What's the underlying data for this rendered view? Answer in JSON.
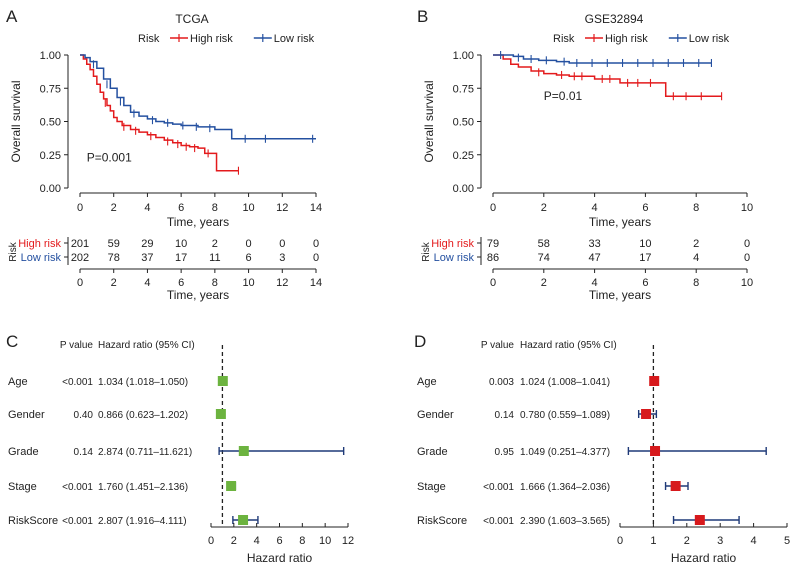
{
  "colors": {
    "high": "#e31a1c",
    "low": "#2450a0",
    "green": "#6cb33f",
    "red": "#d7191c",
    "navy": "#1f3a78",
    "axis": "#222222"
  },
  "chart_data": [
    {
      "panel": "A",
      "type": "line",
      "title": "TCGA",
      "legend_title": "Risk",
      "legend_position": "top-center",
      "xlabel": "Time, years",
      "ylabel": "Overall survival",
      "xlim": [
        0,
        14
      ],
      "ylim": [
        0,
        1
      ],
      "xticks": [
        "0",
        "2",
        "4",
        "6",
        "8",
        "10",
        "12",
        "14"
      ],
      "yticks": [
        "0.00",
        "0.25",
        "0.50",
        "0.75",
        "1.00"
      ],
      "annotation": "P=0.001",
      "series": [
        {
          "name": "High risk",
          "color": "#e31a1c",
          "points": [
            [
              0,
              1.0
            ],
            [
              0.2,
              0.97
            ],
            [
              0.4,
              0.93
            ],
            [
              0.6,
              0.89
            ],
            [
              0.8,
              0.84
            ],
            [
              1.0,
              0.78
            ],
            [
              1.2,
              0.72
            ],
            [
              1.4,
              0.67
            ],
            [
              1.6,
              0.62
            ],
            [
              1.8,
              0.58
            ],
            [
              2.0,
              0.53
            ],
            [
              2.2,
              0.5
            ],
            [
              2.5,
              0.47
            ],
            [
              3.0,
              0.44
            ],
            [
              3.5,
              0.42
            ],
            [
              4.0,
              0.4
            ],
            [
              4.5,
              0.38
            ],
            [
              5.0,
              0.36
            ],
            [
              5.5,
              0.34
            ],
            [
              6.0,
              0.32
            ],
            [
              6.5,
              0.31
            ],
            [
              7.0,
              0.3
            ],
            [
              7.4,
              0.26
            ],
            [
              8.0,
              0.26
            ],
            [
              8.1,
              0.13
            ],
            [
              9.4,
              0.13
            ]
          ],
          "censors": [
            [
              1.5,
              0.64
            ],
            [
              2.6,
              0.46
            ],
            [
              3.3,
              0.43
            ],
            [
              4.2,
              0.39
            ],
            [
              5.2,
              0.35
            ],
            [
              5.8,
              0.33
            ],
            [
              6.3,
              0.31
            ],
            [
              6.8,
              0.3
            ],
            [
              7.6,
              0.26
            ],
            [
              9.4,
              0.13
            ]
          ]
        },
        {
          "name": "Low risk",
          "color": "#2450a0",
          "points": [
            [
              0,
              1.0
            ],
            [
              0.3,
              0.98
            ],
            [
              0.6,
              0.95
            ],
            [
              1.0,
              0.9
            ],
            [
              1.4,
              0.82
            ],
            [
              1.8,
              0.75
            ],
            [
              2.2,
              0.68
            ],
            [
              2.6,
              0.62
            ],
            [
              3.0,
              0.57
            ],
            [
              3.5,
              0.54
            ],
            [
              4.0,
              0.52
            ],
            [
              4.5,
              0.5
            ],
            [
              5.0,
              0.49
            ],
            [
              5.5,
              0.48
            ],
            [
              6.0,
              0.47
            ],
            [
              7.0,
              0.46
            ],
            [
              8.0,
              0.44
            ],
            [
              8.8,
              0.44
            ],
            [
              9.0,
              0.37
            ],
            [
              14.0,
              0.37
            ]
          ],
          "censors": [
            [
              0.8,
              0.93
            ],
            [
              1.6,
              0.78
            ],
            [
              2.4,
              0.65
            ],
            [
              3.2,
              0.56
            ],
            [
              4.3,
              0.51
            ],
            [
              5.2,
              0.49
            ],
            [
              6.1,
              0.47
            ],
            [
              6.9,
              0.46
            ],
            [
              7.7,
              0.45
            ],
            [
              9.8,
              0.37
            ],
            [
              11.0,
              0.37
            ],
            [
              13.8,
              0.37
            ]
          ]
        }
      ],
      "risk_table": {
        "xlabel": "Time, years",
        "label": "Risk",
        "rows": [
          {
            "name": "High risk",
            "color": "#e31a1c",
            "values": [
              "201",
              "59",
              "29",
              "10",
              "2",
              "0",
              "0",
              "0"
            ]
          },
          {
            "name": "Low risk",
            "color": "#2450a0",
            "values": [
              "202",
              "78",
              "37",
              "17",
              "11",
              "6",
              "3",
              "0"
            ]
          }
        ]
      }
    },
    {
      "panel": "B",
      "type": "line",
      "title": "GSE32894",
      "legend_title": "Risk",
      "legend_position": "top-center",
      "xlabel": "Time, years",
      "ylabel": "Overall survival",
      "xlim": [
        0,
        10
      ],
      "ylim": [
        0,
        1
      ],
      "xticks": [
        "0",
        "2",
        "4",
        "6",
        "8",
        "10"
      ],
      "yticks": [
        "0.00",
        "0.25",
        "0.50",
        "0.75",
        "1.00"
      ],
      "annotation": "P=0.01",
      "series": [
        {
          "name": "High risk",
          "color": "#e31a1c",
          "points": [
            [
              0,
              1.0
            ],
            [
              0.4,
              0.97
            ],
            [
              0.7,
              0.93
            ],
            [
              1.0,
              0.91
            ],
            [
              1.5,
              0.88
            ],
            [
              2.0,
              0.86
            ],
            [
              2.5,
              0.85
            ],
            [
              3.0,
              0.84
            ],
            [
              3.8,
              0.84
            ],
            [
              4.0,
              0.82
            ],
            [
              4.8,
              0.82
            ],
            [
              5.0,
              0.79
            ],
            [
              6.7,
              0.79
            ],
            [
              6.8,
              0.69
            ],
            [
              9.0,
              0.69
            ]
          ],
          "censors": [
            [
              1.8,
              0.87
            ],
            [
              2.7,
              0.85
            ],
            [
              3.2,
              0.84
            ],
            [
              3.5,
              0.84
            ],
            [
              4.3,
              0.82
            ],
            [
              4.6,
              0.82
            ],
            [
              5.3,
              0.79
            ],
            [
              5.7,
              0.79
            ],
            [
              6.2,
              0.79
            ],
            [
              7.1,
              0.69
            ],
            [
              7.6,
              0.69
            ],
            [
              8.2,
              0.69
            ],
            [
              9.0,
              0.69
            ]
          ]
        },
        {
          "name": "Low risk",
          "color": "#2450a0",
          "points": [
            [
              0,
              1.0
            ],
            [
              0.8,
              0.99
            ],
            [
              1.2,
              0.97
            ],
            [
              1.8,
              0.96
            ],
            [
              2.5,
              0.95
            ],
            [
              3.0,
              0.94
            ],
            [
              8.6,
              0.94
            ]
          ],
          "censors": [
            [
              0.3,
              1.0
            ],
            [
              1.0,
              0.98
            ],
            [
              1.5,
              0.97
            ],
            [
              2.1,
              0.96
            ],
            [
              2.8,
              0.95
            ],
            [
              3.3,
              0.94
            ],
            [
              3.9,
              0.94
            ],
            [
              4.5,
              0.94
            ],
            [
              5.1,
              0.94
            ],
            [
              5.7,
              0.94
            ],
            [
              6.3,
              0.94
            ],
            [
              6.9,
              0.94
            ],
            [
              7.5,
              0.94
            ],
            [
              8.1,
              0.94
            ],
            [
              8.6,
              0.94
            ]
          ]
        }
      ],
      "risk_table": {
        "xlabel": "Time, years",
        "label": "Risk",
        "rows": [
          {
            "name": "High risk",
            "color": "#e31a1c",
            "values": [
              "79",
              "58",
              "33",
              "10",
              "2",
              "0"
            ]
          },
          {
            "name": "Low risk",
            "color": "#2450a0",
            "values": [
              "86",
              "74",
              "47",
              "17",
              "4",
              "0"
            ]
          }
        ]
      }
    },
    {
      "panel": "C",
      "type": "forest",
      "xlabel": "Hazard ratio",
      "xlim": [
        0,
        12
      ],
      "xticks": [
        "0",
        "2",
        "4",
        "6",
        "8",
        "10",
        "12"
      ],
      "reference_line": 1,
      "col_pvalue": "P value",
      "col_hr": "Hazard ratio (95% CI)",
      "marker_color": "#6cb33f",
      "line_color": "#1f3a78",
      "rows": [
        {
          "label": "Age",
          "p": "<0.001",
          "hr_text": "1.034 (1.018–1.050)",
          "hr": 1.034,
          "lo": 1.018,
          "hi": 1.05
        },
        {
          "label": "Gender",
          "p": "0.40",
          "hr_text": "0.866 (0.623–1.202)",
          "hr": 0.866,
          "lo": 0.623,
          "hi": 1.202
        },
        {
          "label": "Grade",
          "p": "0.14",
          "hr_text": "2.874 (0.711–11.621)",
          "hr": 2.874,
          "lo": 0.711,
          "hi": 11.621
        },
        {
          "label": "Stage",
          "p": "<0.001",
          "hr_text": "1.760 (1.451–2.136)",
          "hr": 1.76,
          "lo": 1.451,
          "hi": 2.136
        },
        {
          "label": "RiskScore",
          "p": "<0.001",
          "hr_text": "2.807 (1.916–4.111)",
          "hr": 2.807,
          "lo": 1.916,
          "hi": 4.111
        }
      ]
    },
    {
      "panel": "D",
      "type": "forest",
      "xlabel": "Hazard ratio",
      "xlim": [
        0,
        5
      ],
      "xticks": [
        "0",
        "1",
        "2",
        "3",
        "4",
        "5"
      ],
      "reference_line": 1,
      "col_pvalue": "P value",
      "col_hr": "Hazard ratio (95% CI)",
      "marker_color": "#d7191c",
      "line_color": "#1f3a78",
      "rows": [
        {
          "label": "Age",
          "p": "0.003",
          "hr_text": "1.024 (1.008–1.041)",
          "hr": 1.024,
          "lo": 1.008,
          "hi": 1.041
        },
        {
          "label": "Gender",
          "p": "0.14",
          "hr_text": "0.780 (0.559–1.089)",
          "hr": 0.78,
          "lo": 0.559,
          "hi": 1.089
        },
        {
          "label": "Grade",
          "p": "0.95",
          "hr_text": "1.049 (0.251–4.377)",
          "hr": 1.049,
          "lo": 0.251,
          "hi": 4.377
        },
        {
          "label": "Stage",
          "p": "<0.001",
          "hr_text": "1.666 (1.364–2.036)",
          "hr": 1.666,
          "lo": 1.364,
          "hi": 2.036
        },
        {
          "label": "RiskScore",
          "p": "<0.001",
          "hr_text": "2.390 (1.603–3.565)",
          "hr": 2.39,
          "lo": 1.603,
          "hi": 3.565
        }
      ]
    }
  ]
}
